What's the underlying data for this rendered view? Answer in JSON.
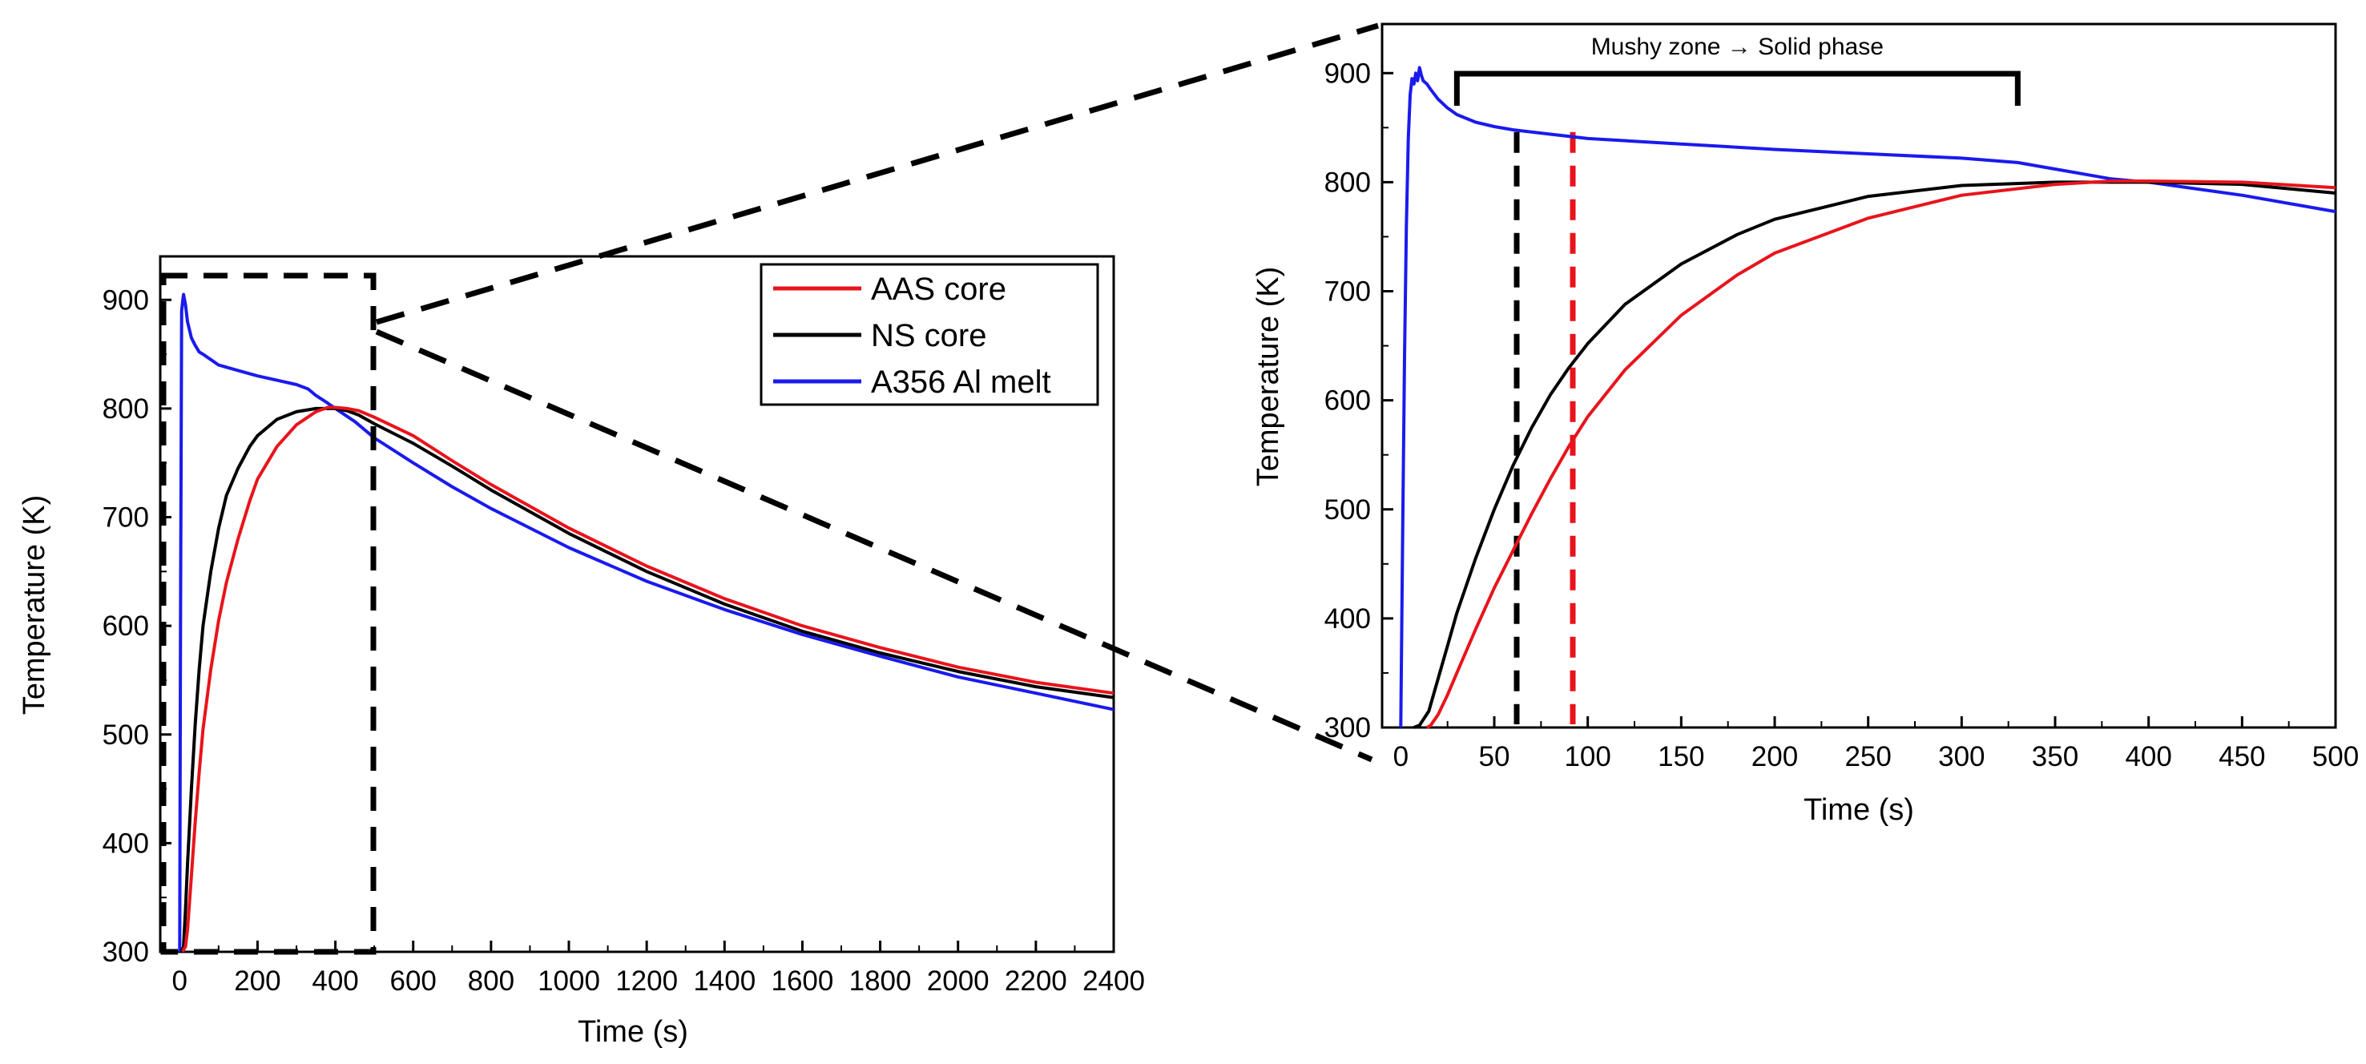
{
  "chart_data": [
    {
      "type": "line",
      "id": "main",
      "xlabel": "Time (s)",
      "ylabel": "Temperature (K)",
      "xlim": [
        -50,
        2400
      ],
      "ylim": [
        300,
        940
      ],
      "xticks": [
        0,
        200,
        400,
        600,
        800,
        1000,
        1200,
        1400,
        1600,
        1800,
        2000,
        2200,
        2400
      ],
      "yticks": [
        300,
        400,
        500,
        600,
        700,
        800,
        900
      ],
      "legend": {
        "position": "top-right"
      },
      "series": [
        {
          "name": "AAS core",
          "color": "#e8141c",
          "x": [
            8,
            10,
            15,
            20,
            30,
            40,
            50,
            60,
            80,
            100,
            120,
            150,
            180,
            200,
            250,
            300,
            350,
            380,
            400,
            430,
            460,
            500,
            600,
            700,
            800,
            1000,
            1200,
            1400,
            1600,
            1800,
            2000,
            2200,
            2400
          ],
          "y": [
            300,
            302,
            305,
            320,
            370,
            420,
            465,
            505,
            560,
            605,
            640,
            680,
            715,
            735,
            765,
            785,
            797,
            801,
            801,
            800,
            798,
            792,
            775,
            752,
            730,
            690,
            655,
            625,
            600,
            580,
            562,
            548,
            538
          ]
        },
        {
          "name": "NS core",
          "color": "#000000",
          "x": [
            5,
            10,
            15,
            20,
            30,
            40,
            50,
            60,
            80,
            100,
            120,
            150,
            180,
            200,
            250,
            300,
            350,
            380,
            400,
            430,
            460,
            500,
            600,
            700,
            800,
            1000,
            1200,
            1400,
            1600,
            1800,
            2000,
            2200,
            2400
          ],
          "y": [
            300,
            305,
            340,
            380,
            450,
            510,
            560,
            600,
            650,
            690,
            720,
            745,
            765,
            775,
            790,
            797,
            800,
            800,
            800,
            798,
            794,
            786,
            768,
            747,
            725,
            685,
            650,
            620,
            595,
            575,
            558,
            544,
            534
          ]
        },
        {
          "name": "A356 Al melt",
          "color": "#1a1aee",
          "x": [
            0,
            2,
            5,
            8,
            10,
            15,
            20,
            30,
            40,
            50,
            60,
            80,
            100,
            150,
            200,
            250,
            300,
            330,
            350,
            380,
            400,
            450,
            500,
            600,
            700,
            800,
            1000,
            1200,
            1400,
            1600,
            1800,
            2000,
            2200,
            2400
          ],
          "y": [
            300,
            600,
            890,
            900,
            905,
            895,
            880,
            865,
            858,
            852,
            850,
            845,
            840,
            835,
            830,
            826,
            822,
            818,
            812,
            805,
            800,
            788,
            773,
            750,
            728,
            708,
            672,
            641,
            615,
            592,
            572,
            553,
            538,
            523
          ]
        }
      ]
    },
    {
      "type": "line",
      "id": "zoom",
      "xlabel": "Time (s)",
      "ylabel": "Temperature (K)",
      "xlim": [
        -10,
        500
      ],
      "ylim": [
        300,
        945
      ],
      "xticks": [
        0,
        50,
        100,
        150,
        200,
        250,
        300,
        350,
        400,
        450,
        500
      ],
      "yticks": [
        300,
        400,
        500,
        600,
        700,
        800,
        900
      ],
      "annotation": "Mushy zone → Solid phase",
      "bracket_x": [
        30,
        330
      ],
      "markers": [
        {
          "x": 62,
          "color": "#000000"
        },
        {
          "x": 92,
          "color": "#e8141c"
        }
      ],
      "series": [
        {
          "name": "AAS core",
          "color": "#e8141c",
          "x": [
            14,
            16,
            20,
            25,
            30,
            40,
            50,
            60,
            70,
            80,
            90,
            100,
            120,
            150,
            180,
            200,
            250,
            300,
            350,
            380,
            400,
            450,
            500
          ],
          "y": [
            300,
            302,
            312,
            330,
            350,
            390,
            428,
            462,
            496,
            528,
            558,
            585,
            628,
            678,
            715,
            735,
            767,
            788,
            798,
            801,
            801,
            800,
            795
          ]
        },
        {
          "name": "NS core",
          "color": "#000000",
          "x": [
            7,
            10,
            15,
            20,
            25,
            30,
            40,
            50,
            60,
            70,
            80,
            90,
            100,
            120,
            150,
            180,
            200,
            250,
            300,
            350,
            380,
            400,
            450,
            500
          ],
          "y": [
            300,
            302,
            315,
            345,
            375,
            405,
            455,
            500,
            540,
            575,
            605,
            630,
            652,
            688,
            725,
            752,
            766,
            787,
            797,
            800,
            800,
            800,
            798,
            790
          ]
        },
        {
          "name": "A356 Al melt",
          "color": "#1a1aee",
          "x": [
            0,
            1,
            2,
            3,
            4,
            5,
            6,
            7,
            8,
            9,
            10,
            11,
            12,
            14,
            16,
            20,
            25,
            30,
            40,
            50,
            60,
            80,
            100,
            150,
            200,
            250,
            300,
            330,
            350,
            370,
            380,
            400,
            450,
            500
          ],
          "y": [
            300,
            480,
            640,
            760,
            840,
            880,
            895,
            890,
            900,
            893,
            905,
            898,
            893,
            890,
            885,
            876,
            868,
            862,
            855,
            851,
            848,
            844,
            840,
            835,
            830,
            826,
            822,
            818,
            812,
            806,
            803,
            800,
            788,
            773
          ]
        }
      ]
    }
  ]
}
